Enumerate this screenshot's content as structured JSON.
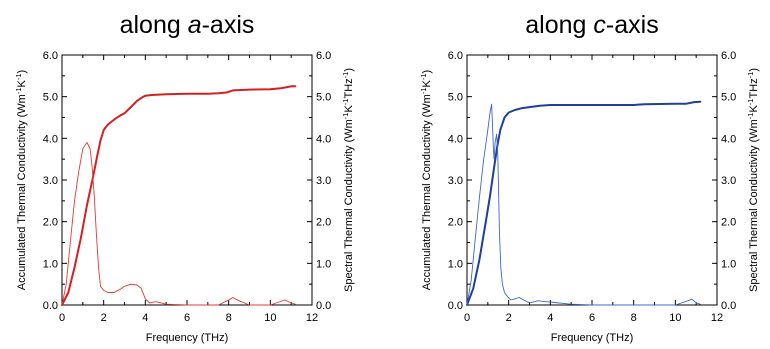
{
  "chart_data": [
    {
      "type": "line",
      "title_prefix": "along ",
      "title_axis": "a",
      "title_suffix": "-axis",
      "xlabel": "Frequency (THz)",
      "ylabel_left": {
        "text": "Accumulated Thermal Conductivity (Wm",
        "sup1": "-1",
        "mid": "K",
        "sup2": "-1",
        "end": ")"
      },
      "ylabel_right": {
        "text": "Spectral Thermal Conductivity (Wm",
        "sup1": "-1",
        "mid": "K",
        "sup2": "-1",
        "mid2": "THz",
        "sup3": "-1",
        "end": ")"
      },
      "xlim": [
        0,
        12
      ],
      "ylim": [
        0,
        6
      ],
      "xticks": [
        "0",
        "2",
        "4",
        "6",
        "8",
        "10",
        "12"
      ],
      "yticks": [
        "0.0",
        "1.0",
        "2.0",
        "3.0",
        "4.0",
        "5.0",
        "6.0"
      ],
      "grid": false,
      "series": [
        {
          "role": "accumulated",
          "color": "#d42020",
          "style": "solid",
          "x": [
            0.0,
            0.3,
            0.6,
            0.9,
            1.2,
            1.5,
            1.7,
            1.85,
            2.0,
            2.2,
            2.5,
            2.8,
            3.0,
            3.3,
            3.6,
            3.9,
            4.0,
            4.3,
            5.0,
            6.0,
            7.0,
            7.5,
            7.9,
            8.2,
            9.0,
            10.0,
            10.5,
            10.8,
            11.0,
            11.2
          ],
          "y": [
            0.0,
            0.3,
            0.9,
            1.6,
            2.4,
            3.1,
            3.6,
            3.95,
            4.2,
            4.33,
            4.45,
            4.55,
            4.6,
            4.75,
            4.9,
            5.0,
            5.02,
            5.04,
            5.06,
            5.07,
            5.07,
            5.08,
            5.1,
            5.15,
            5.17,
            5.18,
            5.2,
            5.23,
            5.25,
            5.25
          ]
        },
        {
          "role": "spectral",
          "color": "#e03a3a",
          "style": "thin",
          "x": [
            0.0,
            0.2,
            0.4,
            0.6,
            0.8,
            1.0,
            1.2,
            1.35,
            1.45,
            1.55,
            1.65,
            1.75,
            1.85,
            2.0,
            2.2,
            2.5,
            2.8,
            3.0,
            3.3,
            3.6,
            3.8,
            4.0,
            4.2,
            4.5,
            5.0,
            6.0,
            7.5,
            8.0,
            8.2,
            8.5,
            9.0,
            10.0,
            10.7,
            11.0,
            11.2
          ],
          "y": [
            0.0,
            0.5,
            1.5,
            2.5,
            3.2,
            3.75,
            3.9,
            3.75,
            3.3,
            2.6,
            1.7,
            0.9,
            0.45,
            0.35,
            0.3,
            0.3,
            0.38,
            0.45,
            0.5,
            0.48,
            0.4,
            0.15,
            0.05,
            0.08,
            0.02,
            0.0,
            0.0,
            0.12,
            0.18,
            0.1,
            0.0,
            0.0,
            0.12,
            0.05,
            0.02
          ]
        }
      ]
    },
    {
      "type": "line",
      "title_prefix": "along ",
      "title_axis": "c",
      "title_suffix": "-axis",
      "xlabel": "Frequency (THz)",
      "ylabel_left": {
        "text": "Accumulated Thermal Conductivity (Wm",
        "sup1": "-1",
        "mid": "K",
        "sup2": "-1",
        "end": ")"
      },
      "ylabel_right": {
        "text": "Spectral Thermal Conductivity (Wm",
        "sup1": "-1",
        "mid": "K",
        "sup2": "-1",
        "mid2": "THz",
        "sup3": "-1",
        "end": ")"
      },
      "xlim": [
        0,
        12
      ],
      "ylim": [
        0,
        6
      ],
      "xticks": [
        "0",
        "2",
        "4",
        "6",
        "8",
        "10",
        "12"
      ],
      "yticks": [
        "0.0",
        "1.0",
        "2.0",
        "3.0",
        "4.0",
        "5.0",
        "6.0"
      ],
      "grid": false,
      "series": [
        {
          "role": "accumulated",
          "color": "#1f3f9a",
          "style": "solid",
          "x": [
            0.0,
            0.3,
            0.6,
            0.9,
            1.1,
            1.3,
            1.45,
            1.6,
            1.8,
            2.0,
            2.3,
            2.6,
            3.0,
            3.5,
            4.0,
            6.0,
            8.0,
            8.5,
            10.0,
            10.5,
            10.9,
            11.2
          ],
          "y": [
            0.0,
            0.4,
            1.1,
            2.0,
            2.6,
            3.3,
            3.8,
            4.2,
            4.5,
            4.62,
            4.68,
            4.72,
            4.75,
            4.78,
            4.8,
            4.8,
            4.8,
            4.82,
            4.83,
            4.83,
            4.87,
            4.88
          ]
        },
        {
          "role": "spectral",
          "color": "#3f67c8",
          "style": "thin",
          "x": [
            0.0,
            0.2,
            0.4,
            0.6,
            0.8,
            1.0,
            1.1,
            1.18,
            1.22,
            1.27,
            1.3,
            1.35,
            1.42,
            1.48,
            1.52,
            1.56,
            1.62,
            1.7,
            1.8,
            1.95,
            2.1,
            2.3,
            2.5,
            2.8,
            3.0,
            3.4,
            3.8,
            4.2,
            5.0,
            6.0,
            8.0,
            10.0,
            10.6,
            10.8,
            11.0,
            11.2
          ],
          "y": [
            0.0,
            0.6,
            1.6,
            2.6,
            3.5,
            4.2,
            4.6,
            4.82,
            4.4,
            3.7,
            3.5,
            3.9,
            4.1,
            3.6,
            2.6,
            1.7,
            0.9,
            0.5,
            0.3,
            0.2,
            0.12,
            0.15,
            0.18,
            0.1,
            0.05,
            0.1,
            0.08,
            0.06,
            0.02,
            0.0,
            0.0,
            0.0,
            0.1,
            0.14,
            0.05,
            0.02
          ]
        }
      ]
    }
  ]
}
